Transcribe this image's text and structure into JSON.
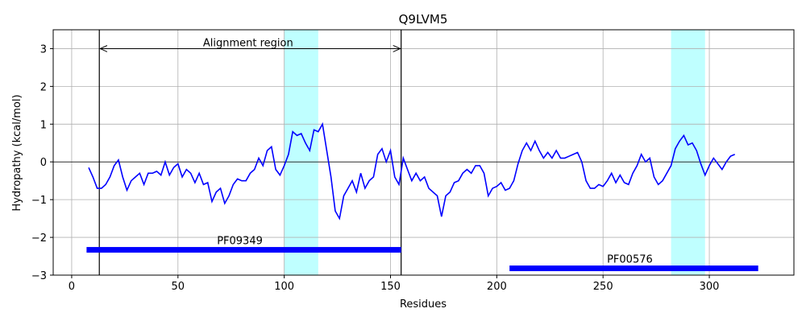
{
  "chart_data": {
    "type": "line",
    "title": "Q9LVM5",
    "xlabel": "Residues",
    "ylabel": "Hydropathy (kcal/mol)",
    "x": [
      8,
      10,
      12,
      14,
      16,
      18,
      20,
      22,
      24,
      26,
      28,
      30,
      32,
      34,
      36,
      38,
      40,
      42,
      44,
      46,
      48,
      50,
      52,
      54,
      56,
      58,
      60,
      62,
      64,
      66,
      68,
      70,
      72,
      74,
      76,
      78,
      80,
      82,
      84,
      86,
      88,
      90,
      92,
      94,
      96,
      98,
      100,
      102,
      104,
      106,
      108,
      110,
      112,
      114,
      116,
      118,
      120,
      122,
      124,
      126,
      128,
      130,
      132,
      134,
      136,
      138,
      140,
      142,
      144,
      146,
      148,
      150,
      152,
      154,
      156,
      158,
      160,
      162,
      164,
      166,
      168,
      170,
      172,
      174,
      176,
      178,
      180,
      182,
      184,
      186,
      188,
      190,
      192,
      194,
      196,
      198,
      200,
      202,
      204,
      206,
      208,
      210,
      212,
      214,
      216,
      218,
      220,
      222,
      224,
      226,
      228,
      230,
      232,
      234,
      236,
      238,
      240,
      242,
      244,
      246,
      248,
      250,
      252,
      254,
      256,
      258,
      260,
      262,
      264,
      266,
      268,
      270,
      272,
      274,
      276,
      278,
      280,
      282,
      284,
      286,
      288,
      290,
      292,
      294,
      296,
      298,
      300,
      302,
      304,
      306,
      308,
      310,
      312
    ],
    "values": [
      -0.15,
      -0.4,
      -0.7,
      -0.7,
      -0.6,
      -0.4,
      -0.1,
      0.05,
      -0.4,
      -0.75,
      -0.5,
      -0.4,
      -0.3,
      -0.6,
      -0.3,
      -0.3,
      -0.25,
      -0.35,
      0.0,
      -0.35,
      -0.15,
      -0.05,
      -0.4,
      -0.2,
      -0.3,
      -0.55,
      -0.3,
      -0.6,
      -0.55,
      -1.05,
      -0.8,
      -0.7,
      -1.1,
      -0.9,
      -0.6,
      -0.45,
      -0.5,
      -0.5,
      -0.3,
      -0.2,
      0.1,
      -0.1,
      0.3,
      0.4,
      -0.2,
      -0.35,
      -0.1,
      0.2,
      0.8,
      0.7,
      0.75,
      0.5,
      0.3,
      0.85,
      0.8,
      1.0,
      0.3,
      -0.4,
      -1.3,
      -1.5,
      -0.9,
      -0.7,
      -0.5,
      -0.8,
      -0.3,
      -0.7,
      -0.5,
      -0.4,
      0.2,
      0.35,
      0.0,
      0.3,
      -0.4,
      -0.6,
      0.1,
      -0.2,
      -0.5,
      -0.3,
      -0.5,
      -0.4,
      -0.7,
      -0.8,
      -0.9,
      -1.45,
      -0.9,
      -0.8,
      -0.55,
      -0.5,
      -0.3,
      -0.2,
      -0.3,
      -0.1,
      -0.1,
      -0.3,
      -0.9,
      -0.7,
      -0.65,
      -0.55,
      -0.75,
      -0.7,
      -0.5,
      -0.05,
      0.3,
      0.5,
      0.3,
      0.55,
      0.3,
      0.1,
      0.25,
      0.1,
      0.3,
      0.1,
      0.1,
      0.15,
      0.2,
      0.25,
      0.0,
      -0.5,
      -0.7,
      -0.7,
      -0.6,
      -0.65,
      -0.5,
      -0.3,
      -0.55,
      -0.35,
      -0.55,
      -0.6,
      -0.3,
      -0.1,
      0.2,
      0.0,
      0.1,
      -0.4,
      -0.6,
      -0.5,
      -0.3,
      -0.1,
      0.35,
      0.55,
      0.7,
      0.45,
      0.5,
      0.3,
      -0.05,
      -0.35,
      -0.1,
      0.1,
      -0.05,
      -0.2,
      0.0,
      0.15,
      0.2
    ],
    "color": "#0000ff",
    "xlim": [
      -8.7,
      339.8
    ],
    "ylim": [
      -3,
      3.5
    ],
    "xticks": [
      0,
      50,
      100,
      150,
      200,
      250,
      300
    ],
    "yticks": [
      {
        "value": -3,
        "label": "−3"
      },
      {
        "value": -2,
        "label": "−2"
      },
      {
        "value": -1,
        "label": "−1"
      },
      0,
      1,
      2,
      3
    ],
    "grid": true,
    "highlight_spans": [
      [
        100,
        116
      ],
      [
        282,
        298
      ]
    ],
    "region_lines": [
      13,
      155
    ],
    "annotation": {
      "text": "Alignment region",
      "x": 83,
      "y": 3.0
    },
    "domains": [
      {
        "name": "PF09349",
        "start": 7,
        "end": 155,
        "y": -2.33,
        "color": "#0000ff"
      },
      {
        "name": "PF00576",
        "start": 206,
        "end": 323,
        "y": -2.82,
        "color": "#0000ff"
      }
    ]
  }
}
